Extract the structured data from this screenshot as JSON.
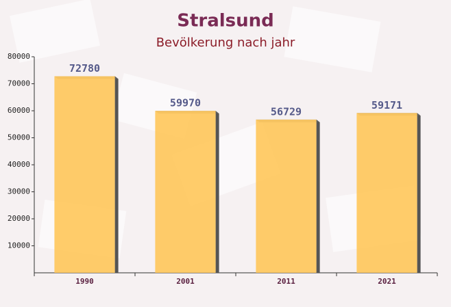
{
  "chart_data": {
    "type": "bar",
    "title": "Stralsund",
    "subtitle": "Bevölkerung nach jahr",
    "categories": [
      "1990",
      "2001",
      "2011",
      "2021"
    ],
    "values": [
      72780,
      59970,
      56729,
      59171
    ],
    "color": "#ffc65a",
    "ylim": [
      0,
      80000
    ],
    "yticks": [
      10000,
      20000,
      30000,
      40000,
      50000,
      60000,
      70000,
      80000
    ]
  }
}
